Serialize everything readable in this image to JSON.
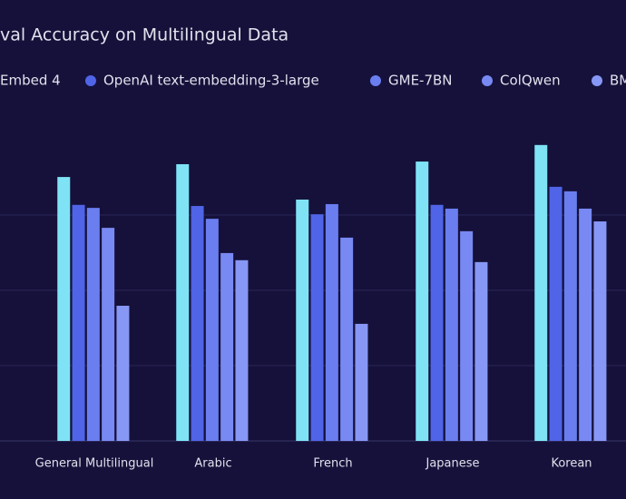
{
  "chart_data": {
    "type": "bar",
    "title": "val Accuracy on Multilingual Data",
    "categories": [
      "General Multilingual",
      "Arabic",
      "French",
      "Japanese",
      "Korean"
    ],
    "series": [
      {
        "name": "Embed 4",
        "color": "#7fe3f5",
        "values": [
          70.1,
          73.5,
          64.1,
          74.2,
          78.6
        ]
      },
      {
        "name": "OpenAI text-embedding-3-large",
        "color": "#4f64e6",
        "values": [
          62.7,
          62.4,
          60.2,
          62.7,
          67.5
        ]
      },
      {
        "name": "GME-7BN",
        "color": "#6a7ef0",
        "values": [
          61.9,
          59.0,
          62.9,
          61.7,
          66.3
        ]
      },
      {
        "name": "ColQwen",
        "color": "#7889f3",
        "values": [
          56.6,
          49.9,
          54.0,
          55.7,
          61.7
        ]
      },
      {
        "name": "BM",
        "color": "#8797f6",
        "values": [
          35.9,
          48.0,
          31.1,
          47.5,
          58.3
        ]
      }
    ],
    "ylim": [
      0,
      80
    ],
    "yticks": [
      20,
      40,
      60
    ],
    "grid": true
  }
}
